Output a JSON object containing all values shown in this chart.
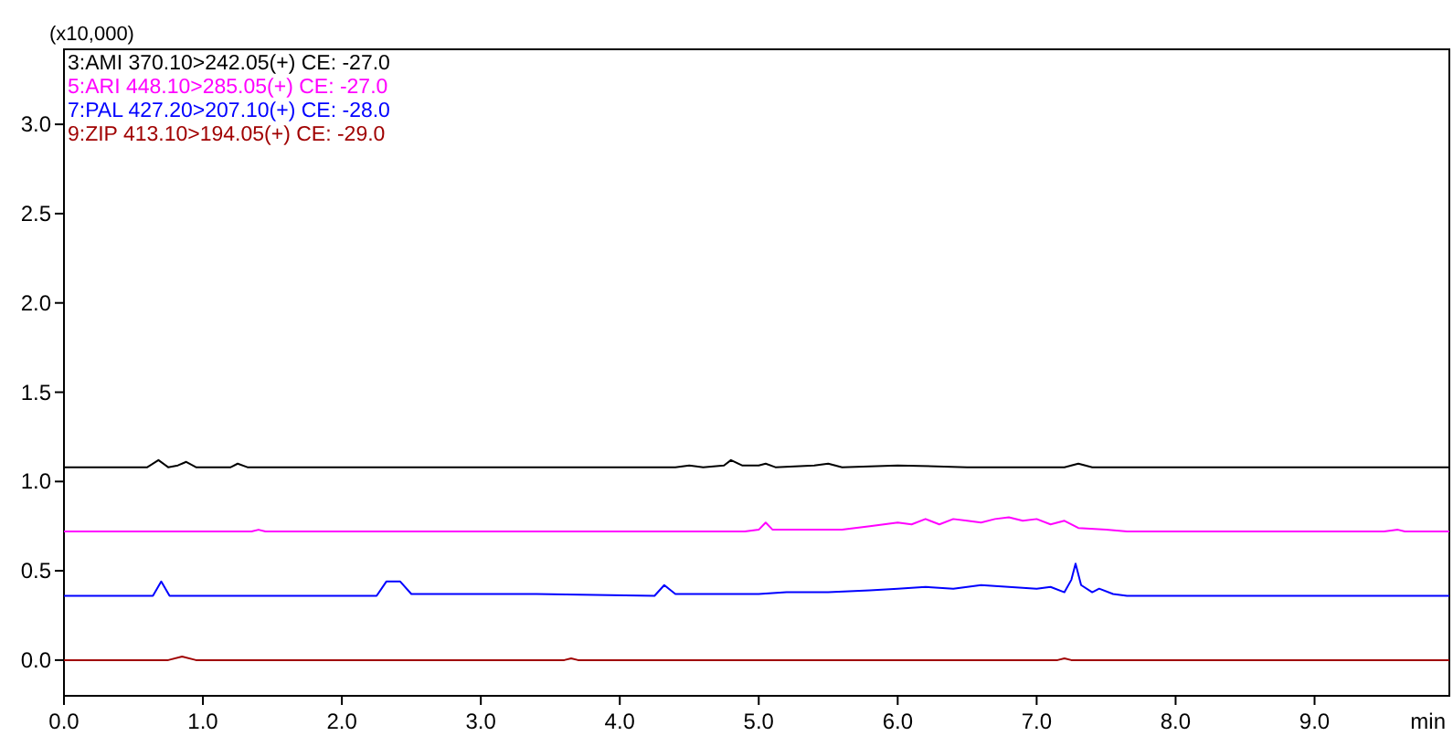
{
  "chart_data": {
    "type": "line",
    "ylabel": "(x10,000)",
    "xlabel": "min",
    "xlim": [
      0,
      9.97
    ],
    "ylim": [
      -0.2,
      3.42
    ],
    "xticks": [
      {
        "value": 0,
        "label": "0.0"
      },
      {
        "value": 1,
        "label": "1.0"
      },
      {
        "value": 2,
        "label": "2.0"
      },
      {
        "value": 3,
        "label": "3.0"
      },
      {
        "value": 4,
        "label": "4.0"
      },
      {
        "value": 5,
        "label": "5.0"
      },
      {
        "value": 6,
        "label": "6.0"
      },
      {
        "value": 7,
        "label": "7.0"
      },
      {
        "value": 8,
        "label": "8.0"
      },
      {
        "value": 9,
        "label": "9.0"
      }
    ],
    "yticks": [
      {
        "value": 0,
        "label": "0.0"
      },
      {
        "value": 0.5,
        "label": "0.5"
      },
      {
        "value": 1,
        "label": "1.0"
      },
      {
        "value": 1.5,
        "label": "1.5"
      },
      {
        "value": 2,
        "label": "2.0"
      },
      {
        "value": 2.5,
        "label": "2.5"
      },
      {
        "value": 3,
        "label": "3.0"
      }
    ],
    "grid": false,
    "legend": "top left",
    "line_style": "solid",
    "series": [
      {
        "name": "3:AMI 370.10>242.05(+) CE: -27.0",
        "color": "#000000",
        "x": [
          0,
          0.6,
          0.68,
          0.75,
          0.82,
          0.88,
          0.95,
          1.2,
          1.25,
          1.32,
          2.0,
          3.0,
          4.0,
          4.4,
          4.5,
          4.6,
          4.75,
          4.8,
          4.88,
          5.0,
          5.05,
          5.12,
          5.4,
          5.5,
          5.6,
          6.0,
          6.5,
          7.2,
          7.3,
          7.4,
          8.0,
          9.0,
          9.97
        ],
        "values": [
          1.08,
          1.08,
          1.12,
          1.08,
          1.09,
          1.11,
          1.08,
          1.08,
          1.1,
          1.08,
          1.08,
          1.08,
          1.08,
          1.08,
          1.09,
          1.08,
          1.09,
          1.12,
          1.09,
          1.09,
          1.1,
          1.08,
          1.09,
          1.1,
          1.08,
          1.09,
          1.08,
          1.08,
          1.1,
          1.08,
          1.08,
          1.08,
          1.08
        ]
      },
      {
        "name": "5:ARI 448.10>285.05(+) CE: -27.0",
        "color": "#ff00ff",
        "x": [
          0,
          1.35,
          1.4,
          1.45,
          4.9,
          5.0,
          5.05,
          5.1,
          5.4,
          5.6,
          5.8,
          6.0,
          6.1,
          6.2,
          6.3,
          6.4,
          6.5,
          6.6,
          6.7,
          6.8,
          6.9,
          7.0,
          7.1,
          7.2,
          7.3,
          7.5,
          7.65,
          9.5,
          9.6,
          9.65,
          9.97
        ],
        "values": [
          0.72,
          0.72,
          0.73,
          0.72,
          0.72,
          0.73,
          0.77,
          0.73,
          0.73,
          0.73,
          0.75,
          0.77,
          0.76,
          0.79,
          0.76,
          0.79,
          0.78,
          0.77,
          0.79,
          0.8,
          0.78,
          0.79,
          0.76,
          0.78,
          0.74,
          0.73,
          0.72,
          0.72,
          0.73,
          0.72,
          0.72
        ]
      },
      {
        "name": "7:PAL 427.20>207.10(+) CE: -28.0",
        "color": "#0000ff",
        "x": [
          0,
          0.64,
          0.7,
          0.76,
          2.25,
          2.32,
          2.42,
          2.5,
          2.7,
          3.4,
          4.25,
          4.32,
          4.4,
          5.0,
          5.2,
          5.5,
          5.8,
          6.0,
          6.2,
          6.4,
          6.6,
          6.8,
          7.0,
          7.1,
          7.2,
          7.25,
          7.28,
          7.32,
          7.4,
          7.45,
          7.55,
          7.65,
          8.0,
          9.0,
          9.97
        ],
        "values": [
          0.36,
          0.36,
          0.44,
          0.36,
          0.36,
          0.44,
          0.44,
          0.37,
          0.37,
          0.37,
          0.36,
          0.42,
          0.37,
          0.37,
          0.38,
          0.38,
          0.39,
          0.4,
          0.41,
          0.4,
          0.42,
          0.41,
          0.4,
          0.41,
          0.38,
          0.45,
          0.54,
          0.42,
          0.38,
          0.4,
          0.37,
          0.36,
          0.36,
          0.36,
          0.36
        ]
      },
      {
        "name": "9:ZIP 413.10>194.05(+) CE: -29.0",
        "color": "#a00000",
        "x": [
          0,
          0.75,
          0.85,
          0.95,
          3.6,
          3.65,
          3.7,
          7.15,
          7.2,
          7.25,
          9.97
        ],
        "values": [
          0,
          0,
          0.02,
          0,
          0,
          0.01,
          0,
          0,
          0.01,
          0,
          0
        ]
      }
    ]
  }
}
